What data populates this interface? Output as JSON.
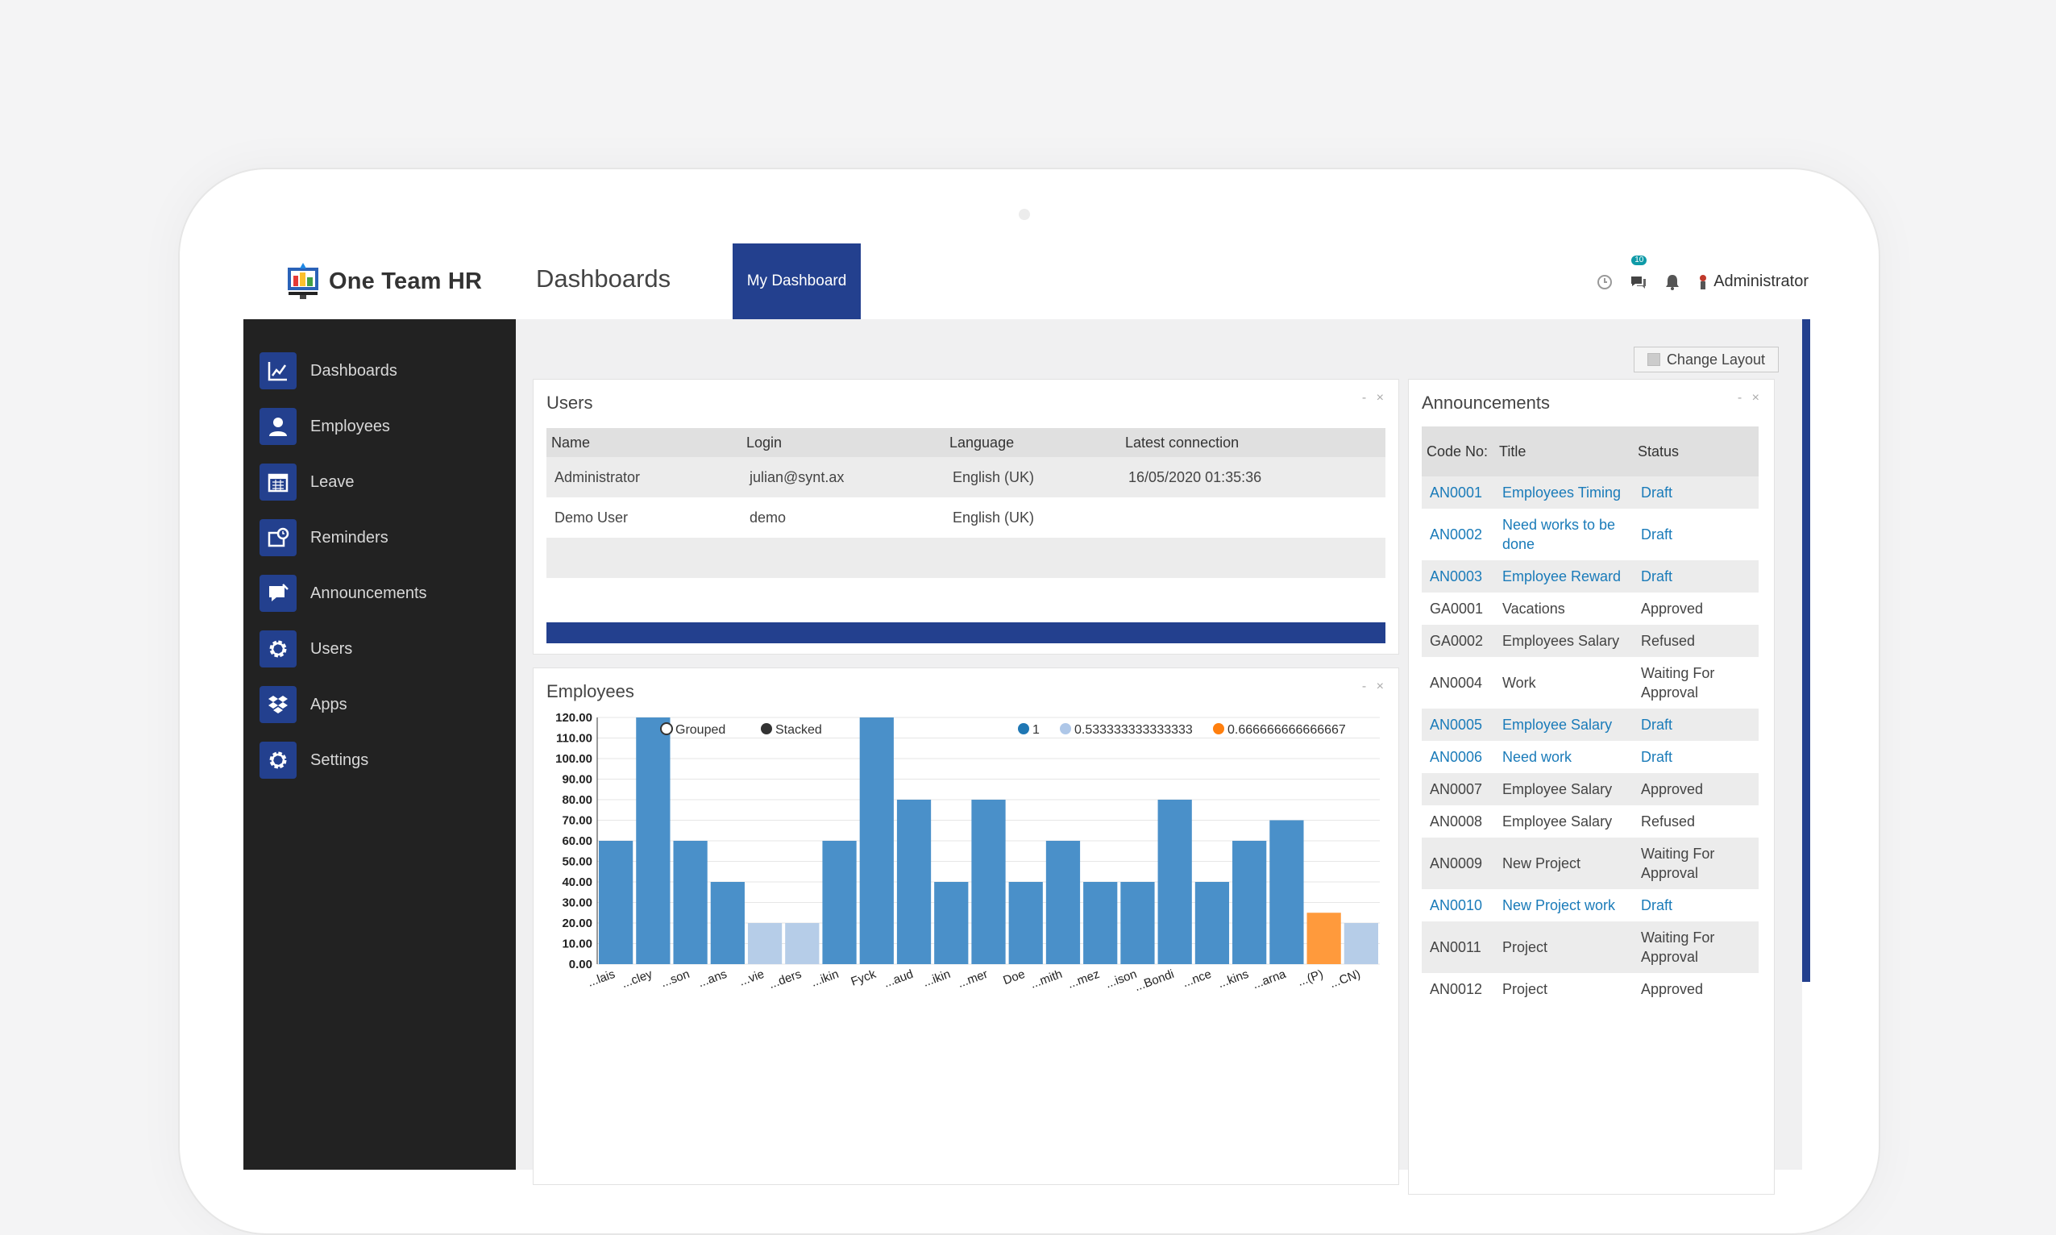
{
  "app": {
    "name": "One Team HR"
  },
  "header": {
    "breadcrumb": "Dashboards",
    "active_tab": "My Dashboard",
    "messages_badge": "10",
    "user_name": "Administrator"
  },
  "sidebar": {
    "items": [
      {
        "label": "Dashboards",
        "icon": "chart-icon"
      },
      {
        "label": "Employees",
        "icon": "user-icon"
      },
      {
        "label": "Leave",
        "icon": "calendar-icon"
      },
      {
        "label": "Reminders",
        "icon": "reminder-icon"
      },
      {
        "label": "Announcements",
        "icon": "megaphone-icon"
      },
      {
        "label": "Users",
        "icon": "gear-icon"
      },
      {
        "label": "Apps",
        "icon": "dropbox-icon"
      },
      {
        "label": "Settings",
        "icon": "gear-icon"
      }
    ]
  },
  "main": {
    "change_layout_label": "Change Layout"
  },
  "users_panel": {
    "title": "Users",
    "controls": "- ×",
    "columns": [
      "Name",
      "Login",
      "Language",
      "Latest connection"
    ],
    "rows": [
      [
        "Administrator",
        "julian@synt.ax",
        "English (UK)",
        "16/05/2020 01:35:36"
      ],
      [
        "Demo User",
        "demo",
        "English (UK)",
        ""
      ]
    ]
  },
  "employees_panel": {
    "title": "Employees",
    "controls": "- ×",
    "toggle_grouped": "Grouped",
    "toggle_stacked": "Stacked"
  },
  "chart_data": {
    "type": "bar",
    "legend": [
      {
        "name": "1",
        "color": "#1f77b4"
      },
      {
        "name": "0.533333333333333",
        "color": "#aec7e8"
      },
      {
        "name": "0.666666666666667",
        "color": "#ff7f0e"
      }
    ],
    "yticks": [
      "0.00",
      "10.00",
      "20.00",
      "30.00",
      "40.00",
      "50.00",
      "60.00",
      "70.00",
      "80.00",
      "90.00",
      "100.00",
      "110.00",
      "120.00"
    ],
    "ylim": [
      0,
      120
    ],
    "values": [
      60,
      120,
      60,
      40,
      20,
      20,
      60,
      120,
      80,
      40,
      80,
      40,
      60,
      40,
      40,
      80,
      40,
      60,
      70,
      25,
      20
    ],
    "series_index": [
      0,
      0,
      0,
      0,
      1,
      1,
      0,
      0,
      0,
      0,
      0,
      0,
      0,
      0,
      0,
      0,
      0,
      0,
      0,
      2,
      1
    ],
    "categories": [
      "...lais",
      "...cley",
      "...son",
      "...ans",
      "...vie",
      "...ders",
      "...ikin",
      "Fyck",
      "...aud",
      "...ikin",
      "...mer",
      "Doe",
      "...mith",
      "...mez",
      "...ison",
      "...Bondi",
      "...nce",
      "...kins",
      "...arna",
      "...(P)",
      "...CN)"
    ],
    "grid": true
  },
  "announcements_panel": {
    "title": "Announcements",
    "controls": "- ×",
    "columns": [
      "Code No:",
      "Title",
      "Status"
    ],
    "rows": [
      {
        "code": "AN0001",
        "title": "Employees Timing",
        "status": "Draft",
        "link": true
      },
      {
        "code": "AN0002",
        "title": "Need works to be done",
        "status": "Draft",
        "link": true
      },
      {
        "code": "AN0003",
        "title": "Employee Reward",
        "status": "Draft",
        "link": true
      },
      {
        "code": "GA0001",
        "title": "Vacations",
        "status": "Approved",
        "link": false
      },
      {
        "code": "GA0002",
        "title": "Employees Salary",
        "status": "Refused",
        "link": false
      },
      {
        "code": "AN0004",
        "title": "Work",
        "status": "Waiting For Approval",
        "link": false
      },
      {
        "code": "AN0005",
        "title": "Employee Salary",
        "status": "Draft",
        "link": true
      },
      {
        "code": "AN0006",
        "title": "Need work",
        "status": "Draft",
        "link": true
      },
      {
        "code": "AN0007",
        "title": "Employee Salary",
        "status": "Approved",
        "link": false
      },
      {
        "code": "AN0008",
        "title": "Employee Salary",
        "status": "Refused",
        "link": false
      },
      {
        "code": "AN0009",
        "title": "New Project",
        "status": "Waiting For Approval",
        "link": false
      },
      {
        "code": "AN0010",
        "title": "New Project work",
        "status": "Draft",
        "link": true
      },
      {
        "code": "AN0011",
        "title": "Project",
        "status": "Waiting For Approval",
        "link": false
      },
      {
        "code": "AN0012",
        "title": "Project",
        "status": "Approved",
        "link": false
      }
    ]
  },
  "colors": {
    "accent": "#23408e",
    "sidebar_bg": "#222222",
    "link": "#1a7bb9",
    "badge": "#0e9aa7"
  }
}
